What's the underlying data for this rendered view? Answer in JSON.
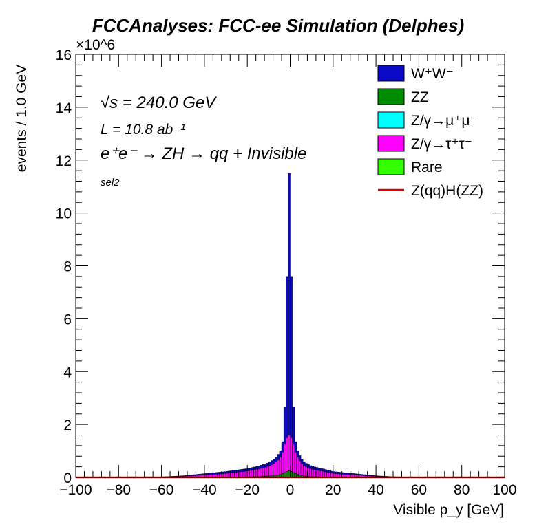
{
  "chart_data": {
    "type": "bar",
    "subtype": "stacked-histogram",
    "title": "FCCAnalyses: FCC-ee Simulation (Delphes)",
    "xlabel": "Visible p_y [GeV]",
    "ylabel": "events / 1.0 GeV",
    "y_multiplier": "×10^6",
    "xlim": [
      -100,
      100
    ],
    "ylim": [
      0,
      16
    ],
    "x_ticks": [
      "−100",
      "−80",
      "−60",
      "−40",
      "−20",
      "0",
      "20",
      "40",
      "60",
      "80",
      "100"
    ],
    "y_ticks": [
      "0",
      "2",
      "4",
      "6",
      "8",
      "10",
      "12",
      "14",
      "16"
    ],
    "annotations": {
      "energy": "√s = 240.0 GeV",
      "lumi": "L = 10.8 ab⁻¹",
      "process": "e⁺e⁻ → ZH → qq + Invisible",
      "selection": "sel2"
    },
    "legend_position": "top-right",
    "series": [
      {
        "name": "W⁺W⁻",
        "color": "#0a0ac8",
        "style": "fill"
      },
      {
        "name": "ZZ",
        "color": "#008c00",
        "style": "fill"
      },
      {
        "name": "Z/γ→μ⁺μ⁻",
        "color": "#00ffff",
        "style": "fill"
      },
      {
        "name": "Z/γ→τ⁺τ⁻",
        "color": "#ff00ff",
        "style": "fill"
      },
      {
        "name": "Rare",
        "color": "#33ff00",
        "style": "fill"
      },
      {
        "name": "Z(qq)H(ZZ)",
        "color": "#e00000",
        "style": "line"
      }
    ],
    "bin_width": 1.0,
    "stack_points_x": [
      -100,
      -60,
      -50,
      -40,
      -30,
      -20,
      -15,
      -10,
      -7,
      -5,
      -4,
      -3,
      -2,
      -1,
      0,
      1,
      2,
      3,
      4,
      5,
      7,
      10,
      15,
      20,
      30,
      40,
      50,
      60,
      100
    ],
    "stack_totals": [
      0.0,
      0.02,
      0.06,
      0.14,
      0.22,
      0.33,
      0.42,
      0.55,
      0.72,
      0.92,
      1.1,
      1.6,
      3.7,
      11.5,
      11.5,
      3.7,
      1.6,
      1.1,
      0.92,
      0.72,
      0.55,
      0.42,
      0.33,
      0.22,
      0.14,
      0.06,
      0.02,
      0.0,
      0.0
    ],
    "tautau_tops": [
      0.0,
      0.01,
      0.04,
      0.09,
      0.15,
      0.24,
      0.31,
      0.42,
      0.55,
      0.7,
      0.82,
      1.1,
      1.4,
      1.6,
      1.6,
      1.4,
      1.1,
      0.82,
      0.7,
      0.55,
      0.42,
      0.31,
      0.24,
      0.15,
      0.09,
      0.04,
      0.01,
      0.0,
      0.0
    ],
    "zz_tops": [
      0.0,
      0.0,
      0.0,
      0.005,
      0.01,
      0.02,
      0.03,
      0.05,
      0.07,
      0.1,
      0.12,
      0.16,
      0.2,
      0.24,
      0.24,
      0.2,
      0.16,
      0.12,
      0.1,
      0.07,
      0.05,
      0.03,
      0.02,
      0.01,
      0.005,
      0.0,
      0.0,
      0.0,
      0.0
    ],
    "rare_tops": [
      0.0,
      0.0,
      0.0,
      0.0,
      0.0,
      0.005,
      0.01,
      0.02,
      0.04,
      0.06,
      0.08,
      0.12,
      0.18,
      0.25,
      0.25,
      0.18,
      0.12,
      0.08,
      0.06,
      0.04,
      0.02,
      0.01,
      0.005,
      0.0,
      0.0,
      0.0,
      0.0,
      0.0,
      0.0
    ],
    "signal_tops": [
      0.0,
      0.0,
      0.0,
      0.0,
      0.0,
      0.0,
      0.0,
      0.0,
      0.0,
      0.0,
      0.0,
      0.0,
      0.0,
      0.0,
      0.0,
      0.0,
      0.0,
      0.0,
      0.0,
      0.0,
      0.0,
      0.0,
      0.0,
      0.0,
      0.0,
      0.0,
      0.0,
      0.0,
      0.0
    ]
  }
}
